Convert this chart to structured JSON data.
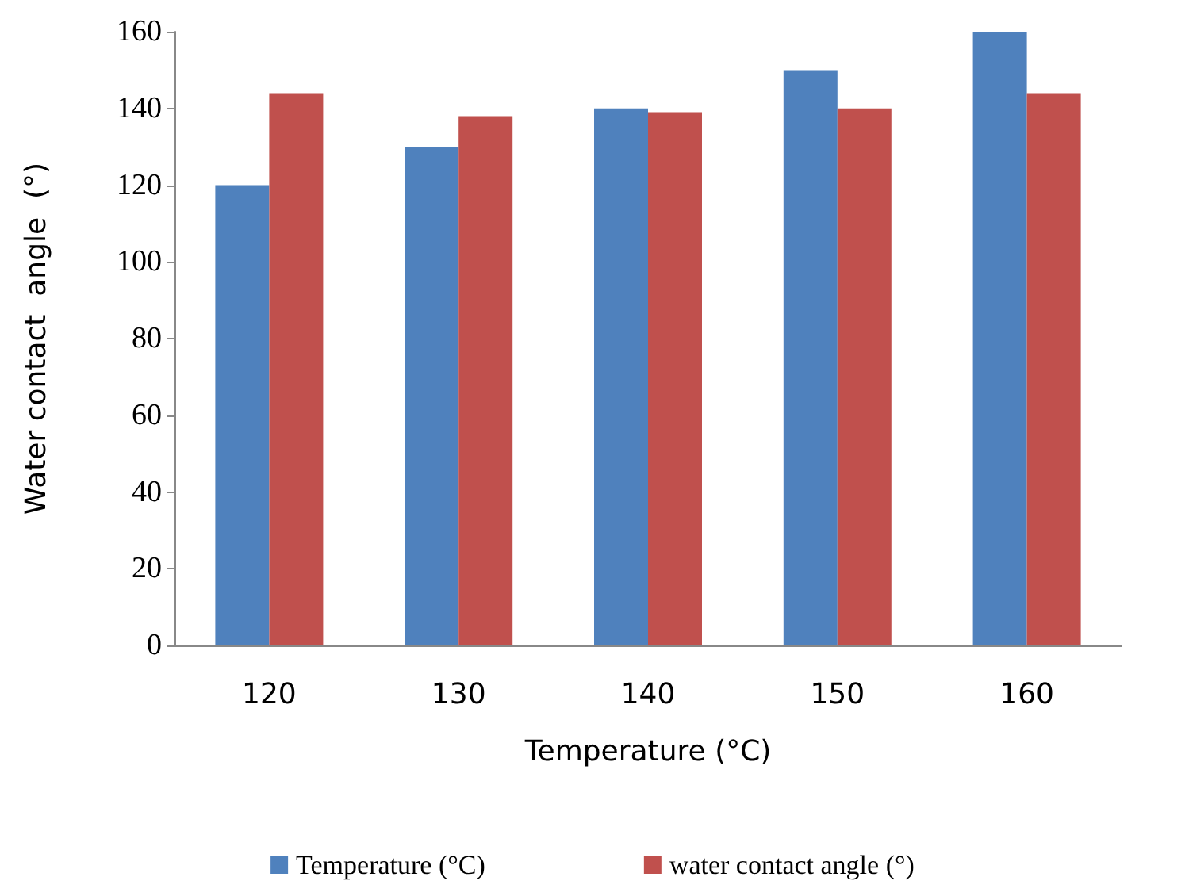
{
  "chart_data": {
    "type": "bar",
    "xlabel": "Temperature (°C)",
    "ylabel": "Water contact  angle  (°)",
    "categories": [
      "120",
      "130",
      "140",
      "150",
      "160"
    ],
    "series": [
      {
        "name": "Temperature (°C)",
        "color": "#4f81bd",
        "values": [
          120,
          130,
          140,
          150,
          160
        ]
      },
      {
        "name": "water contact angle (°)",
        "color": "#c0504d",
        "values": [
          144,
          138,
          139,
          140,
          144
        ]
      }
    ],
    "ylim": [
      0,
      160
    ],
    "yticks": [
      0,
      20,
      40,
      60,
      80,
      100,
      120,
      140,
      160
    ],
    "grid": false,
    "legend": "bottom"
  }
}
